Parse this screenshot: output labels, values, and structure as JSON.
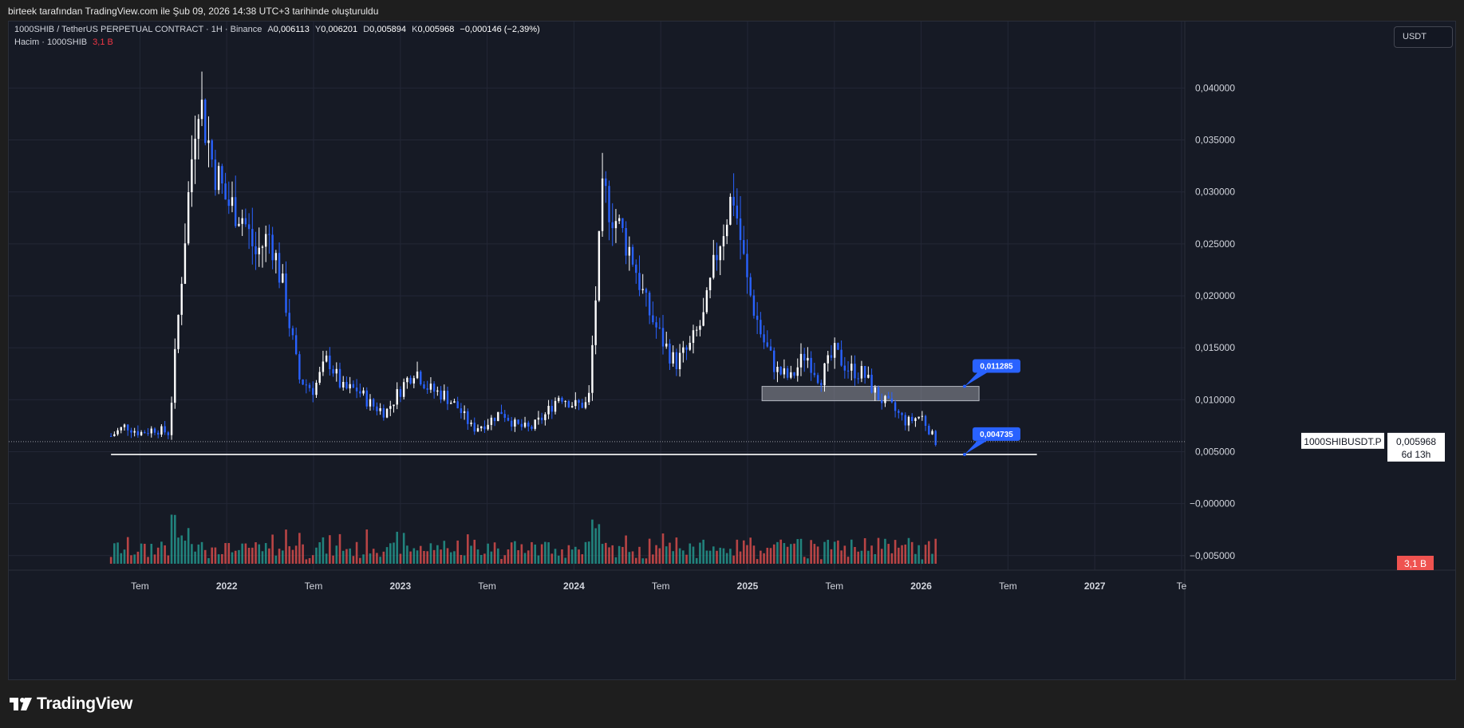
{
  "header": {
    "caption": "birteek tarafından TradingView.com ile Şub 09, 2026 14:38 UTC+3 tarihinde oluşturuldu"
  },
  "legend": {
    "symbol": "1000SHIB / TetherUS PERPETUAL CONTRACT · 1H · Binance",
    "open_label": "A",
    "open": "0,006113",
    "high_label": "Y",
    "high": "0,006201",
    "low_label": "D",
    "low": "0,005894",
    "close_label": "K",
    "close": "0,005968",
    "change": "−0,000146 (−2,39%)",
    "volume_label": "Hacim · 1000SHIB",
    "volume": "3,1 B"
  },
  "currency_button": "USDT",
  "price_tag": {
    "symbol": "1000SHIBUSDT.P",
    "price": "0,005968",
    "countdown": "6d 13h"
  },
  "volume_tag": "3,1 B",
  "annotations": [
    {
      "label": "0,011285",
      "price": 0.011285
    },
    {
      "label": "0,004735",
      "price": 0.004735
    }
  ],
  "brand": "TradingView",
  "colors": {
    "background": "#161a25",
    "up_candle": "#ffffff",
    "down_candle": "#2962ff",
    "volume_up": "#26a69a",
    "volume_down": "#ef5350",
    "annotation": "#2962ff",
    "zone": "#9598a1"
  },
  "chart_data": {
    "type": "candlestick",
    "title": "1000SHIB / TetherUS PERPETUAL CONTRACT · 1H · Binance",
    "y_axis": {
      "ticks": [
        0.04,
        0.035,
        0.03,
        0.025,
        0.02,
        0.015,
        0.01,
        0.005,
        0,
        -0.005
      ],
      "tick_labels": [
        "0,040000",
        "0,035000",
        "0,030000",
        "0,025000",
        "0,020000",
        "0,015000",
        "0,010000",
        "0,005000",
        "−0,000000",
        "−0,005000"
      ],
      "ylim": [
        -0.0064,
        0.0464
      ],
      "scale": "linear"
    },
    "x_axis": {
      "tick_labels": [
        {
          "label": "Tem",
          "date": "2021-07",
          "bold": false
        },
        {
          "label": "2022",
          "date": "2022-01",
          "bold": true
        },
        {
          "label": "Tem",
          "date": "2022-07",
          "bold": false
        },
        {
          "label": "2023",
          "date": "2023-01",
          "bold": true
        },
        {
          "label": "Tem",
          "date": "2023-07",
          "bold": false
        },
        {
          "label": "2024",
          "date": "2024-01",
          "bold": true
        },
        {
          "label": "Tem",
          "date": "2024-07",
          "bold": false
        },
        {
          "label": "2025",
          "date": "2025-01",
          "bold": true
        },
        {
          "label": "Tem",
          "date": "2025-07",
          "bold": false
        },
        {
          "label": "2026",
          "date": "2026-01",
          "bold": true
        },
        {
          "label": "Tem",
          "date": "2026-07",
          "bold": false
        },
        {
          "label": "2027",
          "date": "2027-01",
          "bold": true
        },
        {
          "label": "Te",
          "date": "2027-07",
          "bold": false
        }
      ],
      "range": [
        "2021-04",
        "2027-07"
      ]
    },
    "price_series": [
      [
        "2021-05",
        0.0065
      ],
      [
        "2021-06",
        0.0075
      ],
      [
        "2021-07",
        0.0068
      ],
      [
        "2021-08",
        0.0072
      ],
      [
        "2021-09",
        0.0068
      ],
      [
        "2021-10",
        0.024
      ],
      [
        "2021-11",
        0.04
      ],
      [
        "2021-12",
        0.033
      ],
      [
        "2022-01",
        0.029
      ],
      [
        "2022-02",
        0.028
      ],
      [
        "2022-03",
        0.024
      ],
      [
        "2022-04",
        0.026
      ],
      [
        "2022-05",
        0.02
      ],
      [
        "2022-06",
        0.012
      ],
      [
        "2022-07",
        0.011
      ],
      [
        "2022-08",
        0.014
      ],
      [
        "2022-09",
        0.011
      ],
      [
        "2022-10",
        0.011
      ],
      [
        "2022-11",
        0.0095
      ],
      [
        "2022-12",
        0.0088
      ],
      [
        "2023-01",
        0.011
      ],
      [
        "2023-02",
        0.013
      ],
      [
        "2023-03",
        0.011
      ],
      [
        "2023-04",
        0.0105
      ],
      [
        "2023-05",
        0.0092
      ],
      [
        "2023-06",
        0.0072
      ],
      [
        "2023-07",
        0.0078
      ],
      [
        "2023-08",
        0.0089
      ],
      [
        "2023-09",
        0.0075
      ],
      [
        "2023-10",
        0.0072
      ],
      [
        "2023-11",
        0.0085
      ],
      [
        "2023-12",
        0.0105
      ],
      [
        "2024-01",
        0.0095
      ],
      [
        "2024-02",
        0.0096
      ],
      [
        "2024-03",
        0.03
      ],
      [
        "2024-04",
        0.027
      ],
      [
        "2024-05",
        0.024
      ],
      [
        "2024-06",
        0.019
      ],
      [
        "2024-07",
        0.016
      ],
      [
        "2024-08",
        0.0135
      ],
      [
        "2024-09",
        0.015
      ],
      [
        "2024-10",
        0.018
      ],
      [
        "2024-11",
        0.025
      ],
      [
        "2024-12",
        0.03
      ],
      [
        "2025-01",
        0.021
      ],
      [
        "2025-02",
        0.016
      ],
      [
        "2025-03",
        0.0128
      ],
      [
        "2025-04",
        0.012
      ],
      [
        "2025-05",
        0.0145
      ],
      [
        "2025-06",
        0.012
      ],
      [
        "2025-07",
        0.0145
      ],
      [
        "2025-08",
        0.013
      ],
      [
        "2025-09",
        0.0125
      ],
      [
        "2025-10",
        0.0103
      ],
      [
        "2025-11",
        0.0092
      ],
      [
        "2025-12",
        0.0078
      ],
      [
        "2026-01",
        0.0085
      ],
      [
        "2026-02",
        0.005968
      ]
    ],
    "horizontal_lines": [
      {
        "price": 0.004735,
        "from": "2021-05",
        "to": "2026-09"
      },
      {
        "price": 0.005968,
        "style": "dotted",
        "name": "last price"
      }
    ],
    "zones": [
      {
        "from": "2025-02",
        "to": "2026-05",
        "low": 0.0099,
        "high": 0.011285
      }
    ],
    "volume_series_label": "Hacim · 1000SHIB",
    "last_volume": "3,1 B",
    "grid": true,
    "legend_position": "top-left"
  }
}
